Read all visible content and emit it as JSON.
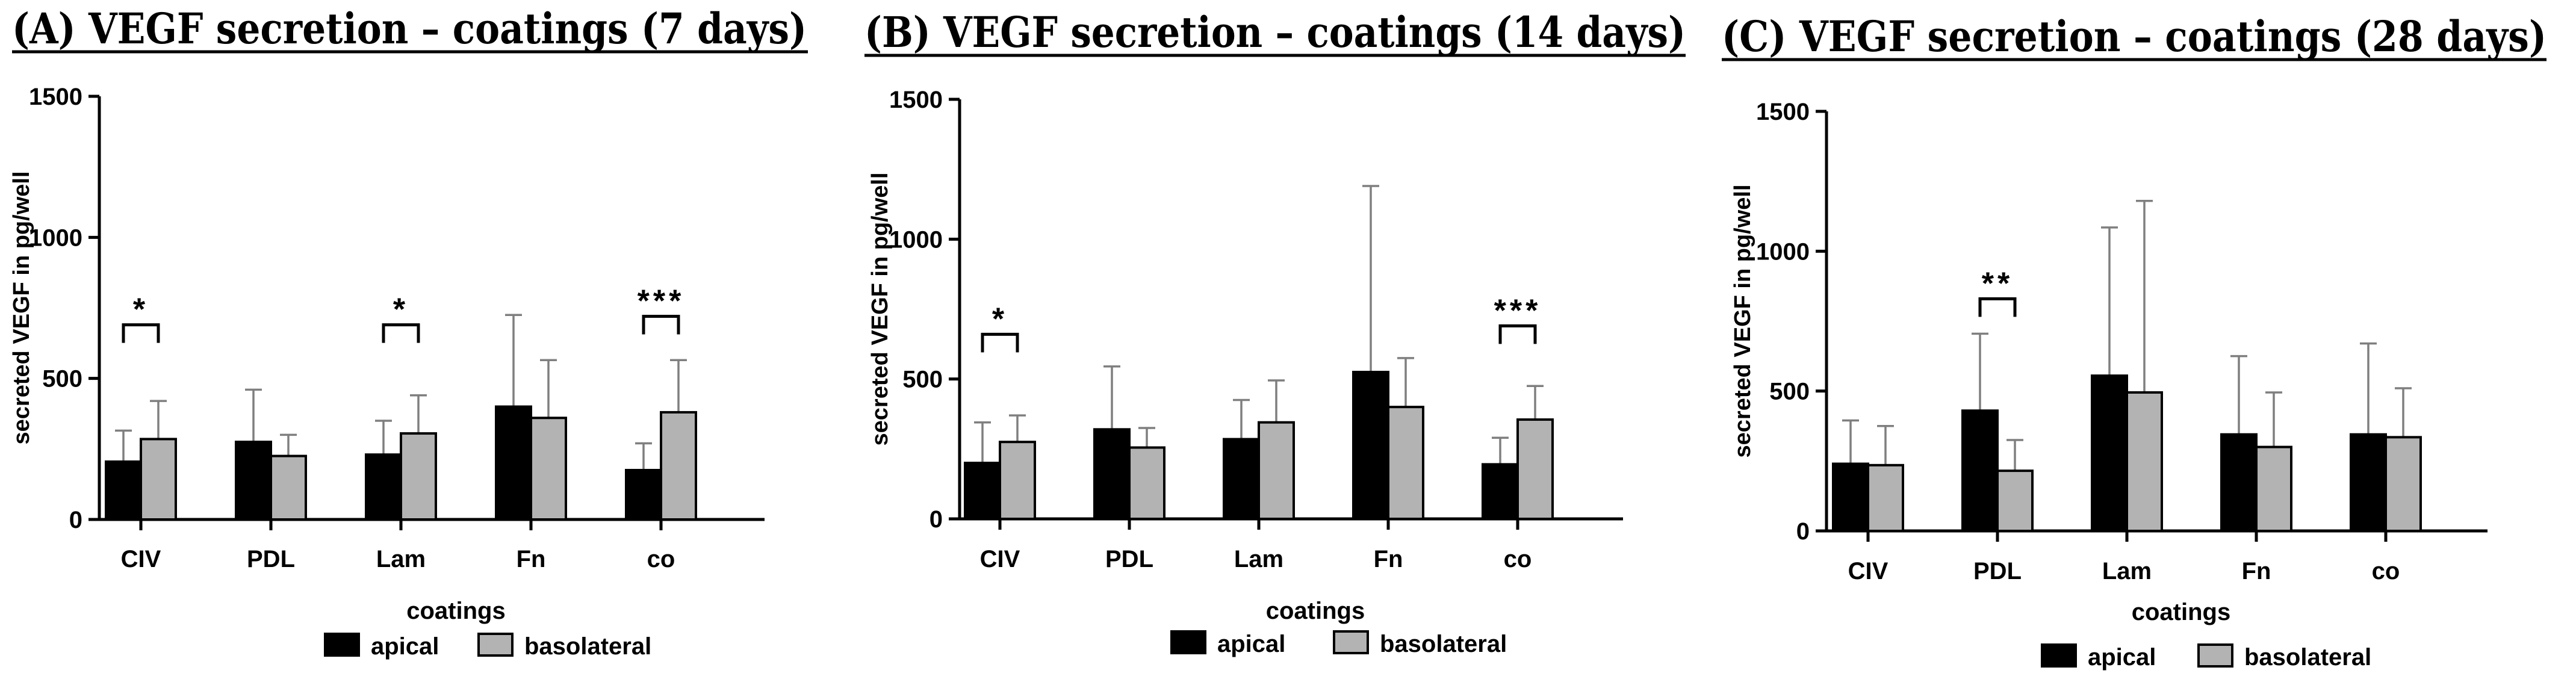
{
  "colors": {
    "apical": "#000000",
    "basolateral": "#b3b3b3",
    "bar_stroke": "#000000",
    "error_bar": "#7f7f7f"
  },
  "chart_data": [
    {
      "type": "bar",
      "title": "(A) VEGF secretion – coatings (7 days)",
      "xlabel": "coatings",
      "ylabel": "secreted VEGF in pg/well",
      "ylim": [
        0,
        1500
      ],
      "yticks": [
        0,
        500,
        1000,
        1500
      ],
      "ytick_labels": [
        "0",
        "500",
        "1000",
        "1500"
      ],
      "categories": [
        "CIV",
        "PDL",
        "Lam",
        "Fn",
        "co"
      ],
      "series": [
        {
          "name": "apical",
          "values": [
            205,
            275,
            230,
            400,
            175
          ],
          "errors": [
            110,
            185,
            120,
            325,
            95
          ]
        },
        {
          "name": "basolateral",
          "values": [
            285,
            225,
            305,
            360,
            380
          ],
          "errors": [
            135,
            75,
            135,
            205,
            185
          ]
        }
      ],
      "significance": [
        {
          "category_index": 0,
          "label": "*",
          "bracket": 690
        },
        {
          "category_index": 2,
          "label": "*",
          "bracket": 690
        },
        {
          "category_index": 4,
          "label": "***",
          "bracket": 720
        }
      ],
      "legend": [
        "apical",
        "basolateral"
      ],
      "legend_position": "bottom"
    },
    {
      "type": "bar",
      "title": "(B) VEGF secretion – coatings (14 days)",
      "xlabel": "coatings",
      "ylabel": "secreted VEGF in pg/well",
      "ylim": [
        0,
        1500
      ],
      "yticks": [
        0,
        500,
        1000,
        1500
      ],
      "ytick_labels": [
        "0",
        "500",
        "1000",
        "1500"
      ],
      "categories": [
        "CIV",
        "PDL",
        "Lam",
        "Fn",
        "co"
      ],
      "series": [
        {
          "name": "apical",
          "values": [
            200,
            320,
            285,
            525,
            195
          ],
          "errors": [
            145,
            225,
            140,
            665,
            95
          ]
        },
        {
          "name": "basolateral",
          "values": [
            275,
            255,
            345,
            400,
            355
          ],
          "errors": [
            95,
            70,
            150,
            175,
            120
          ]
        }
      ],
      "significance": [
        {
          "category_index": 0,
          "label": "*",
          "bracket": 660
        },
        {
          "category_index": 4,
          "label": "***",
          "bracket": 690
        }
      ],
      "legend": [
        "apical",
        "basolateral"
      ],
      "legend_position": "bottom"
    },
    {
      "type": "bar",
      "title": "(C) VEGF secretion – coatings (28 days)",
      "xlabel": "coatings",
      "ylabel": "secreted VEGF in pg/well",
      "ylim": [
        0,
        1500
      ],
      "yticks": [
        0,
        500,
        1000,
        1500
      ],
      "ytick_labels": [
        "0",
        "500",
        "1000",
        "1500"
      ],
      "categories": [
        "CIV",
        "PDL",
        "Lam",
        "Fn",
        "co"
      ],
      "series": [
        {
          "name": "apical",
          "values": [
            240,
            430,
            555,
            345,
            345
          ],
          "errors": [
            155,
            275,
            530,
            280,
            325
          ]
        },
        {
          "name": "basolateral",
          "values": [
            235,
            215,
            495,
            300,
            335
          ],
          "errors": [
            140,
            110,
            685,
            195,
            175
          ]
        }
      ],
      "significance": [
        {
          "category_index": 1,
          "label": "**",
          "bracket": 830
        }
      ],
      "legend": [
        "apical",
        "basolateral"
      ],
      "legend_position": "bottom"
    }
  ]
}
